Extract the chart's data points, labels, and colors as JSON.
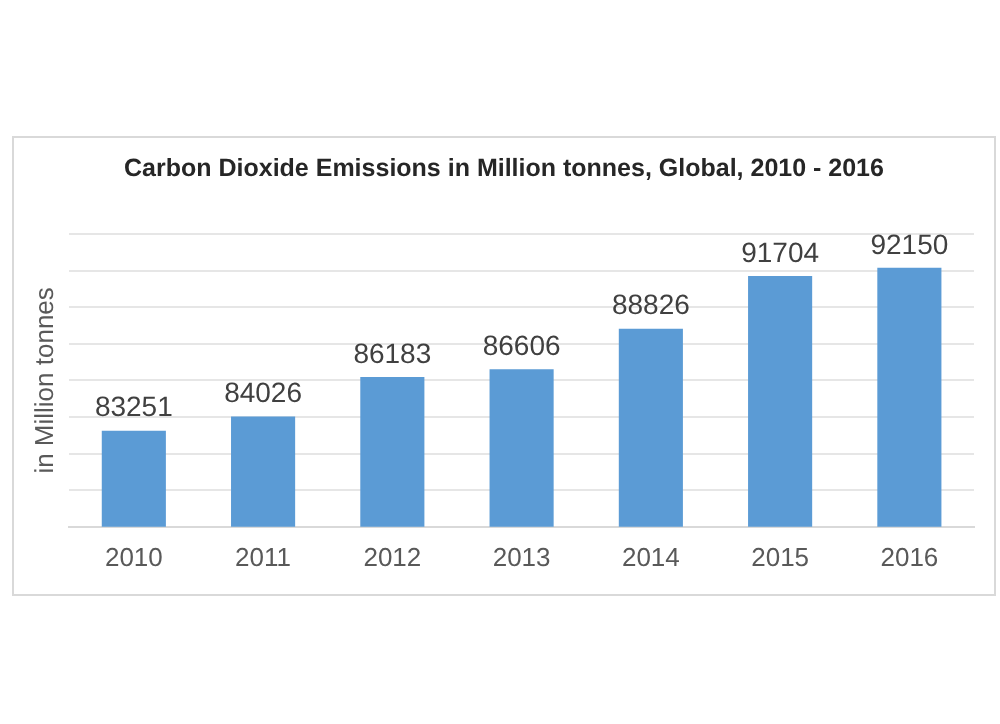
{
  "chart_data": {
    "type": "bar",
    "title": "Carbon Dioxide Emissions in Million tonnes, Global, 2010 - 2016",
    "ylabel": "in Million tonnes",
    "categories": [
      "2010",
      "2011",
      "2012",
      "2013",
      "2014",
      "2015",
      "2016"
    ],
    "values": [
      83251,
      84026,
      86183,
      86606,
      88826,
      91704,
      92150
    ],
    "color": "#5b9bd5",
    "ylim": [
      78000,
      94000
    ],
    "yticks": [
      {
        "value": 78000,
        "label": null
      },
      {
        "value": 80000,
        "label": null
      },
      {
        "value": 82000,
        "label": null
      },
      {
        "value": 84000,
        "label": null
      },
      {
        "value": 86000,
        "label": null
      },
      {
        "value": 88000,
        "label": null
      },
      {
        "value": 90000,
        "label": null
      },
      {
        "value": 92000,
        "label": null
      },
      {
        "value": 94000,
        "label": null
      }
    ],
    "grid": "y",
    "tick_labels": "x",
    "data_labels": true
  }
}
